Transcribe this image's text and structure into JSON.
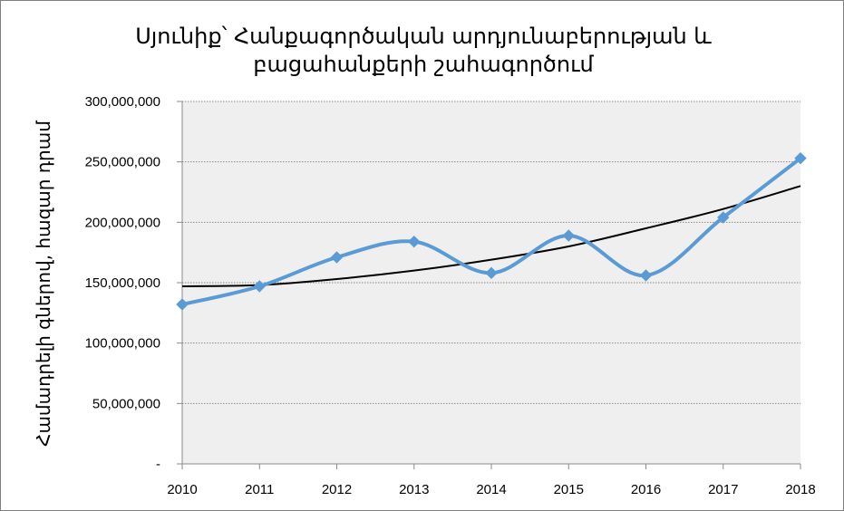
{
  "chart_data": {
    "type": "line",
    "title_lines": [
      "Սյունիք՝ Հանքագործական արդյունաբերության և",
      "բացահանքերի շահագործում"
    ],
    "xlabel": "",
    "ylabel": "Համադրելի գներով, հազար դրամ",
    "categories": [
      "2010",
      "2011",
      "2012",
      "2013",
      "2014",
      "2015",
      "2016",
      "2017",
      "2018"
    ],
    "ylim": [
      0,
      300000000
    ],
    "yticks": [
      0,
      50000000,
      100000000,
      150000000,
      200000000,
      250000000,
      300000000
    ],
    "ytick_labels": [
      "-",
      "50,000,000",
      "100,000,000",
      "150,000,000",
      "200,000,000",
      "250,000,000",
      "300,000,000"
    ],
    "grid": "horizontal dotted",
    "plot_background": "#efefef",
    "series": [
      {
        "kind": "data",
        "color": "#5b9bd5",
        "marker": "diamond",
        "smooth": true,
        "values": [
          132000000,
          147000000,
          171000000,
          184000000,
          158000000,
          189000000,
          156000000,
          204000000,
          253000000
        ]
      },
      {
        "kind": "trendline",
        "color": "#000000",
        "values": [
          147000000,
          148000000,
          153000000,
          160000000,
          169000000,
          180000000,
          195000000,
          211000000,
          230000000
        ]
      }
    ]
  }
}
